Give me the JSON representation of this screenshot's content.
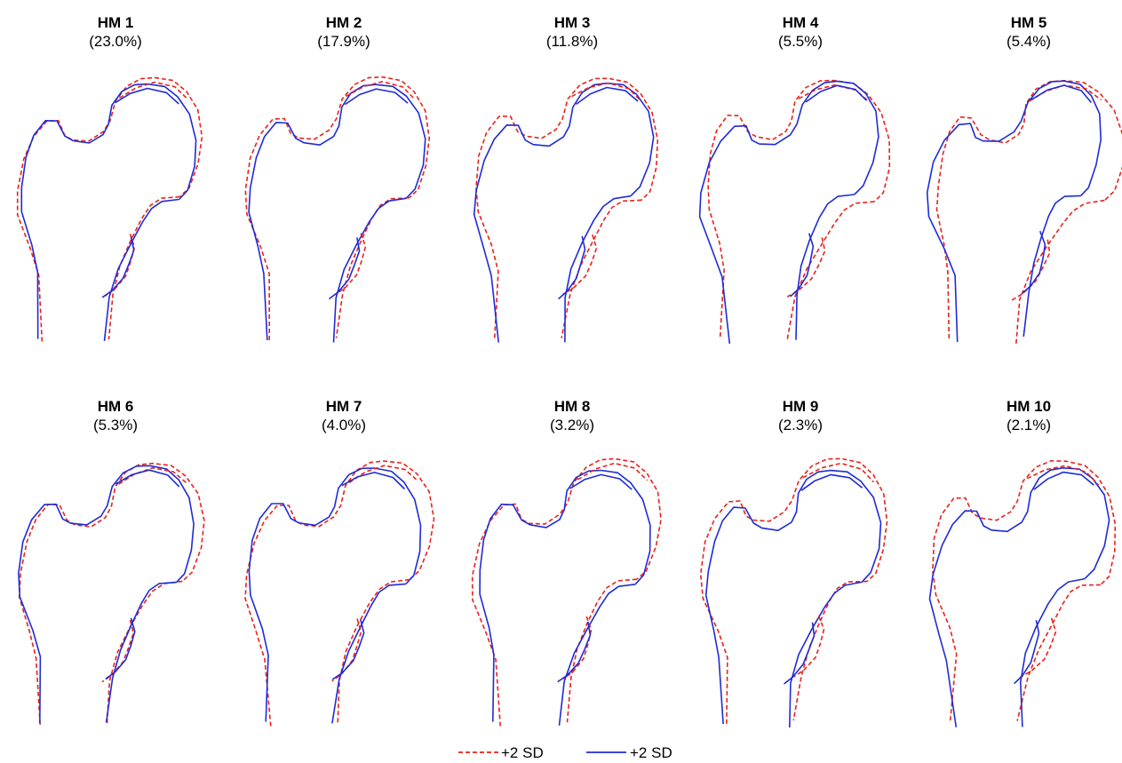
{
  "panels": [
    {
      "title": "HM 1",
      "variance": "(23.0%)",
      "variant": 0
    },
    {
      "title": "HM 2",
      "variance": "(17.9%)",
      "variant": 1
    },
    {
      "title": "HM 3",
      "variance": "(11.8%)",
      "variant": 2
    },
    {
      "title": "HM 4",
      "variance": "(5.5%)",
      "variant": 3
    },
    {
      "title": "HM 5",
      "variance": "(5.4%)",
      "variant": 4
    },
    {
      "title": "HM 6",
      "variance": "(5.3%)",
      "variant": 5
    },
    {
      "title": "HM 7",
      "variance": "(4.0%)",
      "variant": 6
    },
    {
      "title": "HM 8",
      "variance": "(3.2%)",
      "variant": 7
    },
    {
      "title": "HM 9",
      "variance": "(2.3%)",
      "variant": 8
    },
    {
      "title": "HM 10",
      "variance": "(2.1%)",
      "variant": 9
    }
  ],
  "legend": [
    {
      "label": "+2 SD",
      "style": "dashed",
      "color": "#e8221b"
    },
    {
      "label": "+2 SD",
      "style": "solid",
      "color": "#1f2bd6"
    }
  ],
  "colors": {
    "dashed": "#e8221b",
    "solid": "#1f2bd6"
  }
}
